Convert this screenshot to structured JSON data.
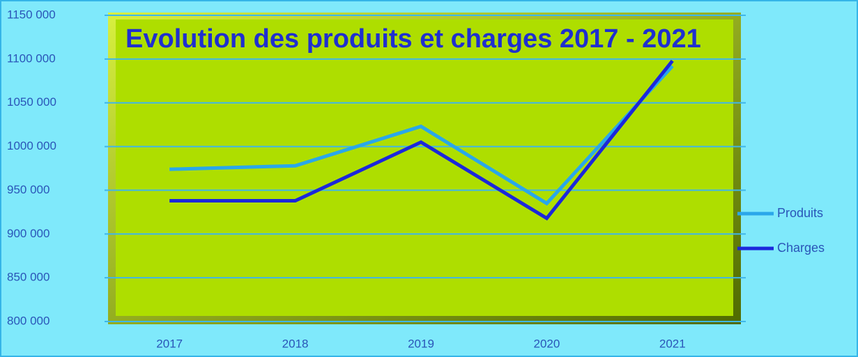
{
  "chart_data": {
    "type": "line",
    "title": "Evolution des produits et charges 2017 - 2021",
    "categories": [
      "2017",
      "2018",
      "2019",
      "2020",
      "2021"
    ],
    "series": [
      {
        "name": "Produits",
        "color": "#2aa7ea",
        "values": [
          974000,
          978000,
          1023000,
          935000,
          1092000
        ]
      },
      {
        "name": "Charges",
        "color": "#1b27dc",
        "values": [
          938000,
          938000,
          1005000,
          918000,
          1098000
        ]
      }
    ],
    "ylim": [
      800000,
      1150000
    ],
    "yticks": [
      {
        "value": 800000,
        "label": "800 000"
      },
      {
        "value": 850000,
        "label": "850 000"
      },
      {
        "value": 900000,
        "label": "900 000"
      },
      {
        "value": 950000,
        "label": "950 000"
      },
      {
        "value": 1000000,
        "label": "1000 000"
      },
      {
        "value": 1050000,
        "label": "1050 000"
      },
      {
        "value": 1100000,
        "label": "1100 000"
      },
      {
        "value": 1150000,
        "label": "1150 000"
      }
    ],
    "grid": true,
    "legend": "right"
  }
}
